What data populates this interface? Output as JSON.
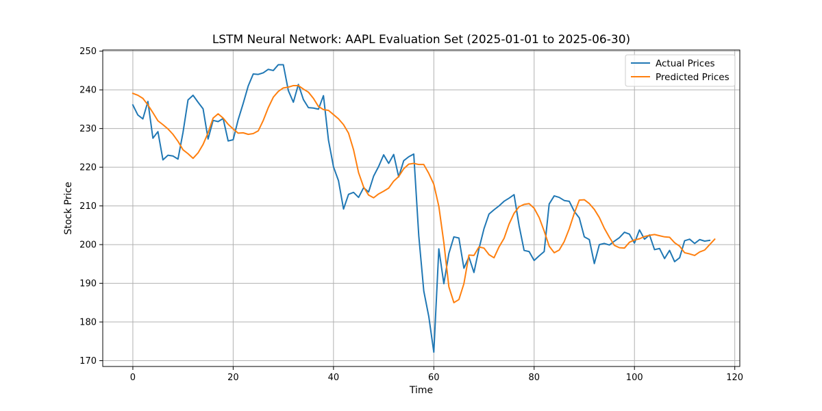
{
  "chart_data": {
    "type": "line",
    "title": "LSTM Neural Network: AAPL Evaluation Set (2025-01-01 to 2025-06-30)",
    "xlabel": "Time",
    "ylabel": "Stock Price",
    "xlim": [
      -6,
      121
    ],
    "ylim": [
      168.5,
      250.3
    ],
    "xticks": [
      0,
      20,
      40,
      60,
      80,
      100,
      120
    ],
    "yticks": [
      170,
      180,
      190,
      200,
      210,
      220,
      230,
      240,
      250
    ],
    "grid": true,
    "legend_position": "top-right",
    "series": [
      {
        "name": "Actual Prices",
        "color": "#1f77b4",
        "values": [
          236.1,
          233.5,
          232.5,
          237.0,
          227.5,
          229.2,
          221.9,
          223.1,
          222.9,
          222.1,
          229.0,
          237.4,
          238.6,
          236.8,
          235.1,
          227.3,
          232.1,
          231.8,
          232.6,
          226.8,
          227.1,
          232.3,
          236.5,
          241.0,
          244.1,
          244.0,
          244.4,
          245.3,
          245.0,
          246.5,
          246.5,
          239.8,
          236.8,
          241.4,
          237.5,
          235.4,
          235.3,
          235.0,
          238.5,
          227.0,
          220.1,
          216.5,
          209.2,
          213.0,
          213.5,
          212.2,
          214.7,
          213.6,
          217.7,
          220.2,
          223.2,
          221.0,
          223.3,
          217.5,
          221.7,
          222.7,
          223.4,
          202.3,
          188.0,
          181.4,
          172.2,
          198.9,
          189.9,
          197.7,
          202.0,
          201.7,
          193.9,
          196.8,
          192.8,
          198.9,
          204.1,
          207.9,
          209.0,
          210.0,
          211.2,
          212.0,
          212.9,
          204.9,
          198.5,
          198.2,
          195.9,
          197.1,
          198.2,
          210.5,
          212.6,
          212.2,
          211.4,
          211.2,
          208.6,
          206.9,
          202.0,
          201.3,
          195.1,
          200.0,
          200.3,
          199.9,
          200.9,
          201.8,
          203.2,
          202.7,
          200.4,
          203.8,
          201.4,
          202.5,
          198.7,
          199.0,
          196.4,
          198.5,
          195.6,
          196.6,
          201.0,
          201.4,
          200.3,
          201.3,
          200.9,
          201.1
        ]
      },
      {
        "name": "Predicted Prices",
        "color": "#ff7f0e",
        "values": [
          239.1,
          238.6,
          237.8,
          236.1,
          234.1,
          232.0,
          231.0,
          229.9,
          228.5,
          226.7,
          224.5,
          223.5,
          222.3,
          223.7,
          225.9,
          228.9,
          232.7,
          233.8,
          232.7,
          231.1,
          229.9,
          228.8,
          228.9,
          228.5,
          228.7,
          229.4,
          232.1,
          235.4,
          238.1,
          239.6,
          240.5,
          240.7,
          241.1,
          241.1,
          240.2,
          239.4,
          237.8,
          235.7,
          234.9,
          234.7,
          233.6,
          232.5,
          231.0,
          228.8,
          224.5,
          218.6,
          214.9,
          212.8,
          212.1,
          213.1,
          213.8,
          214.6,
          216.4,
          217.6,
          219.6,
          220.8,
          221.0,
          220.7,
          220.7,
          218.4,
          215.6,
          209.9,
          200.5,
          189.1,
          185.0,
          185.8,
          189.9,
          197.3,
          197.2,
          199.4,
          199.1,
          197.4,
          196.6,
          199.4,
          201.6,
          205.3,
          208.1,
          209.8,
          210.4,
          210.6,
          209.4,
          207.0,
          203.5,
          199.6,
          197.9,
          198.6,
          200.8,
          204.1,
          208.1,
          211.5,
          211.6,
          210.6,
          209.1,
          207.0,
          204.2,
          201.9,
          199.8,
          199.2,
          199.1,
          200.6,
          201.2,
          201.5,
          202.1,
          202.4,
          202.6,
          202.3,
          202.0,
          201.9,
          200.5,
          199.6,
          197.9,
          197.6,
          197.2,
          198.1,
          198.6,
          200.0,
          201.4
        ]
      }
    ]
  }
}
